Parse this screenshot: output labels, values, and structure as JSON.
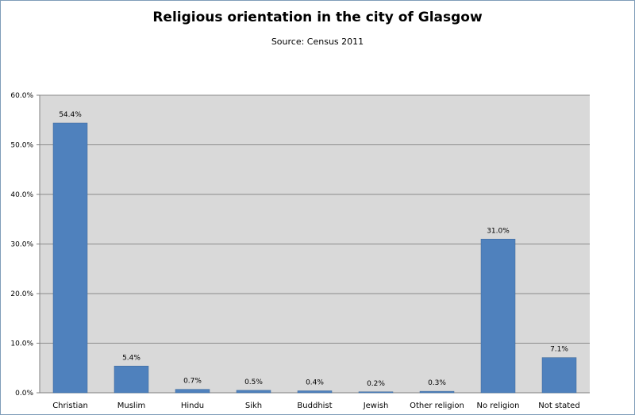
{
  "chart_data": {
    "type": "bar",
    "title": "Religious orientation in the city of Glasgow",
    "subtitle": "Source: Census 2011",
    "xlabel": "",
    "ylabel": "",
    "ylim": [
      0,
      60
    ],
    "ytick_values": [
      0,
      10,
      20,
      30,
      40,
      50,
      60
    ],
    "ytick_labels": [
      "0.0%",
      "10.0%",
      "20.0%",
      "30.0%",
      "40.0%",
      "50.0%",
      "60.0%"
    ],
    "categories": [
      "Christian",
      "Muslim",
      "Hindu",
      "Sikh",
      "Buddhist",
      "Jewish",
      "Other religion",
      "No religion",
      "Not stated"
    ],
    "values": [
      54.4,
      5.4,
      0.7,
      0.5,
      0.4,
      0.2,
      0.3,
      31.0,
      7.1
    ],
    "data_labels": [
      "54.4%",
      "5.4%",
      "0.7%",
      "0.5%",
      "0.4%",
      "0.2%",
      "0.3%",
      "31.0%",
      "7.1%"
    ],
    "grid": true,
    "legend": "none",
    "colors": {
      "bar": "#4f81bd",
      "bar_edge": "#3d6899",
      "plot_bg": "#d9d9d9",
      "gridline": "#8c8c8c"
    }
  }
}
